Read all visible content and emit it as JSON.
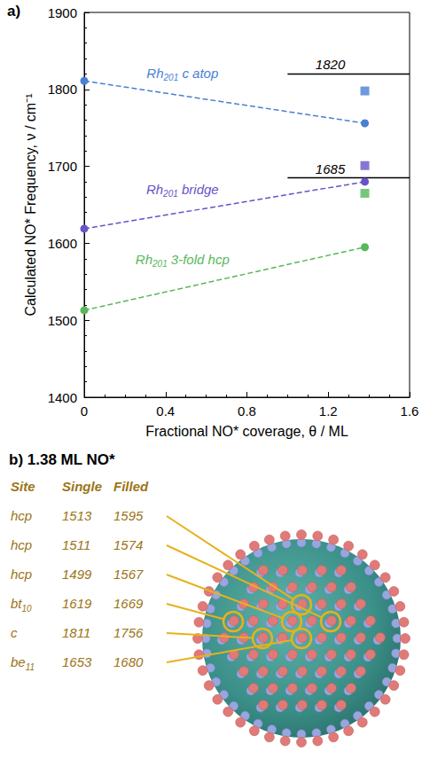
{
  "chart_data": {
    "type": "line",
    "panel_label": "a)",
    "xlabel": "Fractional NO* coverage, θ / ML",
    "ylabel": "Calculated NO* Frequency, ν / cm⁻¹",
    "xlim": [
      0,
      1.6
    ],
    "xticks": [
      0,
      0.4,
      0.8,
      1.2,
      1.6
    ],
    "ylim": [
      1400,
      1900
    ],
    "yticks": [
      1400,
      1500,
      1600,
      1700,
      1800,
      1900
    ],
    "grid": false,
    "series": [
      {
        "name": "Rh201 c atop",
        "type": "line",
        "line_style": "dashed",
        "marker": "circle",
        "color": "#4a7fd4",
        "x": [
          0,
          1.38
        ],
        "values": [
          1811,
          1756
        ]
      },
      {
        "name": "Rh201 bridge",
        "type": "line",
        "line_style": "dashed",
        "marker": "circle",
        "color": "#6a52c8",
        "x": [
          0,
          1.38
        ],
        "values": [
          1619,
          1680
        ]
      },
      {
        "name": "Rh201 3-fold hcp",
        "type": "line",
        "line_style": "dashed",
        "marker": "circle",
        "color": "#58b85a",
        "x": [
          0,
          1.38
        ],
        "values": [
          1513,
          1595
        ]
      },
      {
        "type": "scatter",
        "marker": "square",
        "color": "#4a7fd4",
        "x": [
          1.38
        ],
        "values": [
          1798
        ]
      },
      {
        "type": "scatter",
        "marker": "square",
        "color": "#6a52c8",
        "x": [
          1.38
        ],
        "values": [
          1701
        ]
      },
      {
        "type": "scatter",
        "marker": "square",
        "color": "#58b85a",
        "x": [
          1.38
        ],
        "values": [
          1665
        ]
      }
    ],
    "reference_lines": [
      {
        "y": 1820,
        "x": [
          1.0,
          1.6
        ]
      },
      {
        "y": 1685,
        "x": [
          1.0,
          1.6
        ]
      }
    ]
  },
  "panel_b": {
    "title": "b) 1.38 ML NO*",
    "table": {
      "header": [
        "Site",
        "Single",
        "Filled"
      ],
      "rows": [
        [
          "hcp",
          1513,
          1595
        ],
        [
          "hcp",
          1511,
          1574
        ],
        [
          "hcp",
          1499,
          1567
        ],
        [
          "bt10",
          1619,
          1669
        ],
        [
          "c",
          1811,
          1756
        ],
        [
          "be11",
          1653,
          1680
        ]
      ]
    }
  }
}
